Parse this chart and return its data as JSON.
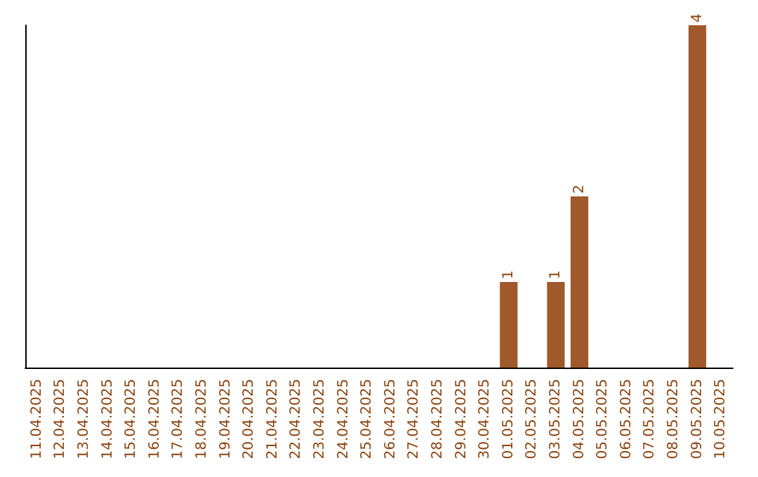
{
  "chart_data": {
    "type": "bar",
    "categories": [
      "11.04.2025",
      "12.04.2025",
      "13.04.2025",
      "14.04.2025",
      "15.04.2025",
      "16.04.2025",
      "17.04.2025",
      "18.04.2025",
      "19.04.2025",
      "20.04.2025",
      "21.04.2025",
      "22.04.2025",
      "23.04.2025",
      "24.04.2025",
      "25.04.2025",
      "26.04.2025",
      "27.04.2025",
      "28.04.2025",
      "29.04.2025",
      "30.04.2025",
      "01.05.2025",
      "02.05.2025",
      "03.05.2025",
      "04.05.2025",
      "05.05.2025",
      "06.05.2025",
      "07.05.2025",
      "08.05.2025",
      "09.05.2025",
      "10.05.2025"
    ],
    "values": [
      null,
      null,
      null,
      null,
      null,
      null,
      null,
      null,
      null,
      null,
      null,
      null,
      null,
      null,
      null,
      null,
      null,
      null,
      null,
      null,
      1,
      null,
      1,
      2,
      null,
      null,
      null,
      null,
      4,
      null
    ],
    "value_labels": [
      null,
      null,
      null,
      null,
      null,
      null,
      null,
      null,
      null,
      null,
      null,
      null,
      null,
      null,
      null,
      null,
      null,
      null,
      null,
      null,
      "1",
      null,
      "1",
      "2",
      null,
      null,
      null,
      null,
      "4",
      null
    ],
    "color": "#a0592a",
    "tick_labels": "x",
    "grid": false
  }
}
